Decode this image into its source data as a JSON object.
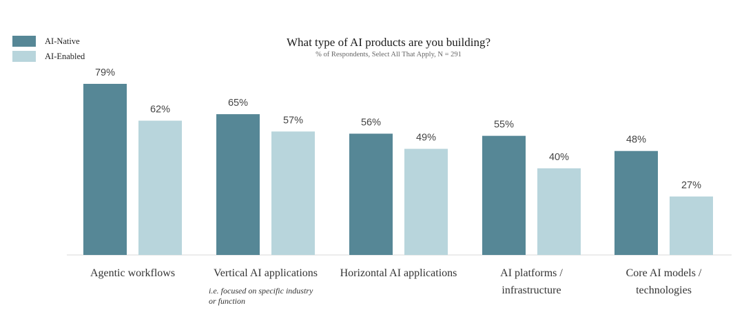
{
  "chart_data": {
    "type": "bar",
    "title": "What type of AI products are you building?",
    "subtitle": "% of Respondents, Select All That Apply, N = 291",
    "categories": [
      [
        "Agentic workflows"
      ],
      [
        "Vertical AI applications"
      ],
      [
        "Horizontal AI applications"
      ],
      [
        "AI platforms /",
        "infrastructure"
      ],
      [
        "Core AI models /",
        "technologies"
      ]
    ],
    "category_notes": [
      [],
      [
        "i.e. focused on specific industry",
        "or function"
      ],
      [],
      [],
      []
    ],
    "series": [
      {
        "name": "AI-Native",
        "values": [
          79,
          65,
          56,
          55,
          48
        ],
        "labels": [
          "79%",
          "65%",
          "56%",
          "55%",
          "48%"
        ],
        "color": "#568796"
      },
      {
        "name": "AI-Enabled",
        "values": [
          62,
          57,
          49,
          40,
          27
        ],
        "labels": [
          "62%",
          "57%",
          "49%",
          "40%",
          "27%"
        ],
        "color": "#b8d5dc"
      }
    ],
    "ylim": [
      0,
      79
    ],
    "grid": false,
    "legend_position": "top-left",
    "baseline_color": "#d9d9d9"
  }
}
